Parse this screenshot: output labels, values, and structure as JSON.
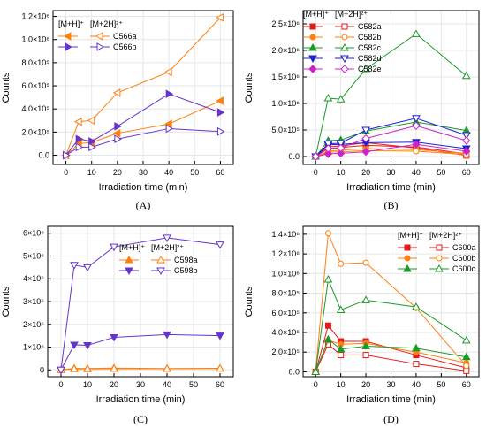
{
  "chart_data": [
    {
      "type": "line",
      "panel_label": "(A)",
      "xlabel": "Irradiation time (min)",
      "ylabel": "Counts",
      "x": [
        0,
        5,
        10,
        20,
        40,
        60
      ],
      "xlim": [
        -5,
        65
      ],
      "xticks": [
        0,
        10,
        20,
        30,
        40,
        50,
        60
      ],
      "ylim": [
        -80000,
        1250000
      ],
      "yticks": [
        0,
        200000,
        400000,
        600000,
        800000,
        1000000,
        1200000
      ],
      "ytick_labels": [
        "0.0",
        "2.0×10⁵",
        "4.0×10⁵",
        "6.0×10⁵",
        "8.0×10⁵",
        "1.0×10⁶",
        "1.2×10⁶"
      ],
      "legend": {
        "placement": "top-left",
        "headers": [
          "[M+H]⁺",
          "[M+2H]²⁺"
        ],
        "rows": [
          {
            "label": "C566a",
            "color": "#ff7f0e",
            "marker": "left-triangle"
          },
          {
            "label": "C566b",
            "color": "#6633cc",
            "marker": "right-triangle"
          }
        ]
      },
      "series": [
        {
          "label": "C566a",
          "ion": "[M+H]⁺",
          "color": "#ff7f0e",
          "marker": "left-triangle",
          "filled": true,
          "values": [
            0,
            100000,
            110000,
            190000,
            270000,
            470000
          ]
        },
        {
          "label": "C566a",
          "ion": "[M+2H]²⁺",
          "color": "#ff7f0e",
          "marker": "left-triangle",
          "filled": false,
          "values": [
            0,
            290000,
            300000,
            540000,
            720000,
            1190000
          ]
        },
        {
          "label": "C566b",
          "ion": "[M+H]⁺",
          "color": "#6633cc",
          "marker": "right-triangle",
          "filled": true,
          "values": [
            0,
            140000,
            120000,
            250000,
            530000,
            370000
          ]
        },
        {
          "label": "C566b",
          "ion": "[M+2H]²⁺",
          "color": "#6633cc",
          "marker": "right-triangle",
          "filled": false,
          "values": [
            0,
            70000,
            70000,
            140000,
            230000,
            205000
          ]
        }
      ]
    },
    {
      "type": "line",
      "panel_label": "(B)",
      "xlabel": "Irradiation time (min)",
      "ylabel": "Counts",
      "x": [
        0,
        5,
        10,
        20,
        40,
        60
      ],
      "xlim": [
        -5,
        65
      ],
      "xticks": [
        0,
        10,
        20,
        30,
        40,
        50,
        60
      ],
      "ylim": [
        -150000,
        2750000
      ],
      "yticks": [
        0,
        500000,
        1000000,
        1500000,
        2000000,
        2500000
      ],
      "ytick_labels": [
        "0.0",
        "5.0×10⁵",
        "1.0×10⁶",
        "1.5×10⁶",
        "2.0×10⁶",
        "2.5×10⁶"
      ],
      "legend": {
        "placement": "top-left",
        "headers": [
          "[M+H]⁺",
          "[M+2H]²⁺"
        ],
        "rows": [
          {
            "label": "C582a",
            "color": "#e31a1c",
            "marker": "square"
          },
          {
            "label": "C582b",
            "color": "#ff7f0e",
            "marker": "circle"
          },
          {
            "label": "C582c",
            "color": "#1a9a2a",
            "marker": "up-triangle"
          },
          {
            "label": "C582d",
            "color": "#1f1fd6",
            "marker": "down-triangle"
          },
          {
            "label": "C582e",
            "color": "#cc22cc",
            "marker": "diamond"
          }
        ]
      },
      "series": [
        {
          "label": "C582a",
          "ion": "[M+H]⁺",
          "color": "#e31a1c",
          "marker": "square",
          "filled": true,
          "values": [
            0,
            150000,
            170000,
            210000,
            180000,
            50000
          ]
        },
        {
          "label": "C582a",
          "ion": "[M+2H]²⁺",
          "color": "#e31a1c",
          "marker": "square",
          "filled": false,
          "values": [
            0,
            180000,
            200000,
            260000,
            160000,
            20000
          ]
        },
        {
          "label": "C582b",
          "ion": "[M+H]⁺",
          "color": "#ff7f0e",
          "marker": "circle",
          "filled": true,
          "values": [
            0,
            100000,
            120000,
            150000,
            130000,
            60000
          ]
        },
        {
          "label": "C582b",
          "ion": "[M+2H]²⁺",
          "color": "#ff7f0e",
          "marker": "circle",
          "filled": false,
          "values": [
            0,
            80000,
            90000,
            110000,
            100000,
            40000
          ]
        },
        {
          "label": "C582c",
          "ion": "[M+H]⁺",
          "color": "#1a9a2a",
          "marker": "up-triangle",
          "filled": true,
          "values": [
            0,
            300000,
            310000,
            480000,
            650000,
            490000
          ]
        },
        {
          "label": "C582c",
          "ion": "[M+2H]²⁺",
          "color": "#1a9a2a",
          "marker": "up-triangle",
          "filled": false,
          "values": [
            0,
            1100000,
            1080000,
            1650000,
            2310000,
            1520000
          ]
        },
        {
          "label": "C582d",
          "ion": "[M+H]⁺",
          "color": "#1f1fd6",
          "marker": "down-triangle",
          "filled": true,
          "values": [
            0,
            220000,
            230000,
            260000,
            270000,
            150000
          ]
        },
        {
          "label": "C582d",
          "ion": "[M+2H]²⁺",
          "color": "#1f1fd6",
          "marker": "down-triangle",
          "filled": false,
          "values": [
            0,
            240000,
            250000,
            500000,
            720000,
            400000
          ]
        },
        {
          "label": "C582e",
          "ion": "[M+H]⁺",
          "color": "#cc22cc",
          "marker": "diamond",
          "filled": true,
          "values": [
            0,
            50000,
            60000,
            90000,
            230000,
            100000
          ]
        },
        {
          "label": "C582e",
          "ion": "[M+2H]²⁺",
          "color": "#cc22cc",
          "marker": "diamond",
          "filled": false,
          "values": [
            0,
            150000,
            160000,
            340000,
            580000,
            300000
          ]
        }
      ]
    },
    {
      "type": "line",
      "panel_label": "(C)",
      "xlabel": "Irradiation time (min)",
      "ylabel": "Counts",
      "x": [
        0,
        5,
        10,
        20,
        40,
        60
      ],
      "xlim": [
        -5,
        65
      ],
      "xticks": [
        0,
        10,
        20,
        30,
        40,
        50,
        60
      ],
      "ylim": [
        -300000,
        6300000
      ],
      "yticks": [
        0,
        1000000,
        2000000,
        3000000,
        4000000,
        5000000,
        6000000
      ],
      "ytick_labels": [
        "0",
        "1×10⁶",
        "2×10⁶",
        "3×10⁶",
        "4×10⁶",
        "5×10⁶",
        "6×10⁶"
      ],
      "legend": {
        "placement": "center-right",
        "headers": [
          "[M+H]⁺",
          "[M+2H]²⁺"
        ],
        "rows": [
          {
            "label": "C598a",
            "color": "#ff7f0e",
            "marker": "up-triangle"
          },
          {
            "label": "C598b",
            "color": "#6633cc",
            "marker": "down-triangle"
          }
        ]
      },
      "series": [
        {
          "label": "C598a",
          "ion": "[M+H]⁺",
          "color": "#ff7f0e",
          "marker": "up-triangle",
          "filled": true,
          "values": [
            0,
            70000,
            60000,
            80000,
            60000,
            70000
          ]
        },
        {
          "label": "C598a",
          "ion": "[M+2H]²⁺",
          "color": "#ff7f0e",
          "marker": "up-triangle",
          "filled": false,
          "values": [
            0,
            40000,
            40000,
            50000,
            50000,
            60000
          ]
        },
        {
          "label": "C598b",
          "ion": "[M+H]⁺",
          "color": "#6633cc",
          "marker": "down-triangle",
          "filled": true,
          "values": [
            0,
            1100000,
            1080000,
            1430000,
            1550000,
            1500000
          ]
        },
        {
          "label": "C598b",
          "ion": "[M+2H]²⁺",
          "color": "#6633cc",
          "marker": "down-triangle",
          "filled": false,
          "values": [
            0,
            4600000,
            4500000,
            5400000,
            5800000,
            5500000
          ]
        }
      ]
    },
    {
      "type": "line",
      "panel_label": "(D)",
      "xlabel": "Irradiation time (min)",
      "ylabel": "Counts",
      "x": [
        0,
        5,
        10,
        20,
        40,
        60
      ],
      "xlim": [
        -5,
        65
      ],
      "xticks": [
        0,
        10,
        20,
        30,
        40,
        50,
        60
      ],
      "ylim": [
        -50000,
        1480000
      ],
      "yticks": [
        0,
        200000,
        400000,
        600000,
        800000,
        1000000,
        1200000,
        1400000
      ],
      "ytick_labels": [
        "0.0",
        "2.0×10⁵",
        "4.0×10⁵",
        "6.0×10⁵",
        "8.0×10⁵",
        "1.0×10⁶",
        "1.2×10⁶",
        "1.4×10⁶"
      ],
      "legend": {
        "placement": "top-right",
        "headers": [
          "[M+H]⁺",
          "[M+2H]²⁺"
        ],
        "rows": [
          {
            "label": "C600a",
            "color": "#e31a1c",
            "marker": "square"
          },
          {
            "label": "C600b",
            "color": "#ff7f0e",
            "marker": "circle"
          },
          {
            "label": "C600c",
            "color": "#1a9a2a",
            "marker": "up-triangle"
          }
        ]
      },
      "series": [
        {
          "label": "C600a",
          "ion": "[M+H]⁺",
          "color": "#e31a1c",
          "marker": "square",
          "filled": true,
          "values": [
            0,
            470000,
            310000,
            310000,
            170000,
            40000
          ]
        },
        {
          "label": "C600a",
          "ion": "[M+2H]²⁺",
          "color": "#e31a1c",
          "marker": "square",
          "filled": false,
          "values": [
            0,
            280000,
            170000,
            170000,
            80000,
            10000
          ]
        },
        {
          "label": "C600b",
          "ion": "[M+H]⁺",
          "color": "#ff7f0e",
          "marker": "circle",
          "filled": true,
          "values": [
            0,
            320000,
            280000,
            290000,
            200000,
            90000
          ]
        },
        {
          "label": "C600b",
          "ion": "[M+2H]²⁺",
          "color": "#ff7f0e",
          "marker": "circle",
          "filled": false,
          "values": [
            0,
            1410000,
            1100000,
            1110000,
            650000,
            60000
          ]
        },
        {
          "label": "C600c",
          "ion": "[M+H]⁺",
          "color": "#1a9a2a",
          "marker": "up-triangle",
          "filled": true,
          "values": [
            0,
            330000,
            230000,
            260000,
            240000,
            150000
          ]
        },
        {
          "label": "C600c",
          "ion": "[M+2H]²⁺",
          "color": "#1a9a2a",
          "marker": "up-triangle",
          "filled": false,
          "values": [
            0,
            940000,
            630000,
            730000,
            660000,
            320000
          ]
        }
      ]
    }
  ]
}
